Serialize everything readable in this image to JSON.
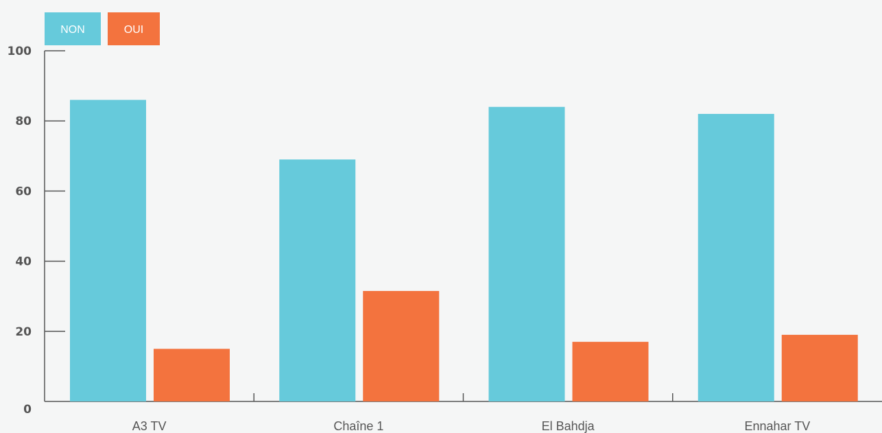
{
  "chart_data": {
    "type": "bar",
    "categories": [
      "A3 TV",
      "Chaîne 1",
      "El Bahdja",
      "Ennahar TV"
    ],
    "series": [
      {
        "name": "NON",
        "color": "#66cadb",
        "values": [
          86,
          69,
          84,
          82
        ]
      },
      {
        "name": "OUI",
        "color": "#f3733e",
        "values": [
          15,
          31.5,
          17,
          19
        ]
      }
    ],
    "ylim": [
      0,
      100
    ],
    "yticks": [
      "0",
      "20",
      "40",
      "60",
      "80",
      "100"
    ],
    "grid": false,
    "legend": "top-left"
  }
}
